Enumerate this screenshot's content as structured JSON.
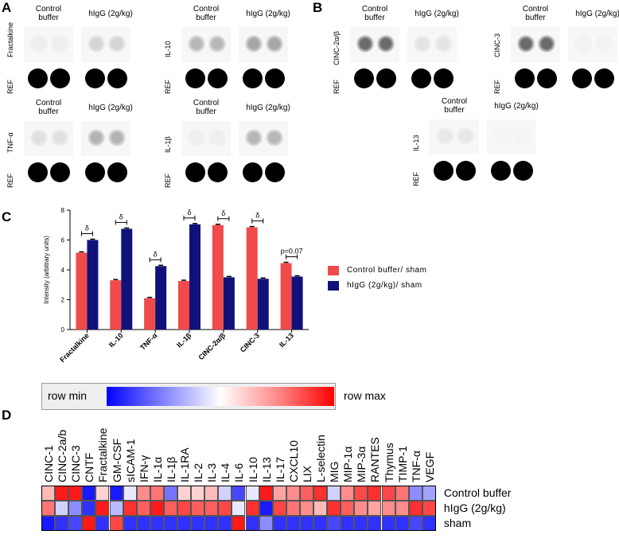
{
  "panels": {
    "a": "A",
    "b": "B",
    "c": "C",
    "d": "D"
  },
  "blots": {
    "control": "Control\nbuffer",
    "higg": "hIgG (2g/kg)",
    "ref": "REF",
    "a_items": [
      {
        "name": "Fractalkine"
      },
      {
        "name": "IL-10"
      },
      {
        "name": "TNF-α"
      },
      {
        "name": "IL-1β"
      }
    ],
    "b_items": [
      {
        "name": "CINC-2α/β"
      },
      {
        "name": "CINC-3"
      },
      {
        "name": "IL-13"
      }
    ]
  },
  "chart_data": {
    "type": "bar",
    "ylabel": "Intensity (arbitrary units)",
    "ylim": [
      0,
      8
    ],
    "yticks": [
      0,
      2,
      4,
      6,
      8
    ],
    "categories": [
      "Fractalkine",
      "IL-10",
      "TNF-α",
      "IL-1β",
      "CINC-2α/β",
      "CINC-3",
      "IL-13"
    ],
    "series": [
      {
        "name": "Control buffer/ sham",
        "color": "#f04a4a",
        "values": [
          5.15,
          3.3,
          2.1,
          3.25,
          7.0,
          6.85,
          4.45
        ]
      },
      {
        "name": "hIgG (2g/kg)/ sham",
        "color": "#10127a",
        "values": [
          6.0,
          6.75,
          4.25,
          7.05,
          3.5,
          3.4,
          3.55
        ]
      }
    ],
    "annotations": [
      "δ",
      "δ",
      "δ",
      "δ",
      "δ",
      "δ",
      "p=0.07"
    ]
  },
  "colorbar": {
    "min_label": "row min",
    "max_label": "row max"
  },
  "heatmap": {
    "columns": [
      "CINC-1",
      "CINC-2a/b",
      "CINC-3",
      "CNTF",
      "Fractalkine",
      "GM-CSF",
      "sICAM-1",
      "IFN-γ",
      "IL-1α",
      "IL-1β",
      "IL-1RA",
      "IL-2",
      "IL-3",
      "IL-4",
      "IL-6",
      "IL-10",
      "IL-13",
      "IL-17",
      "CXCL10",
      "LIX",
      "L-selectin",
      "MIG",
      "MIP-1α",
      "MIP-3α",
      "RANTES",
      "Thymus",
      "TIMP-1",
      "TNF-α",
      "VEGF"
    ],
    "rows": [
      "Control buffer",
      "hIgG (2g/kg)",
      "sham"
    ],
    "values": [
      [
        0.3,
        1.0,
        1.0,
        -1.0,
        0.2,
        -1.0,
        -0.1,
        0.5,
        0.6,
        -0.6,
        0.2,
        0.2,
        0.3,
        -0.2,
        -0.8,
        -0.1,
        1.0,
        0.4,
        0.5,
        0.7,
        0.9,
        -0.2,
        0.5,
        0.8,
        0.9,
        0.8,
        0.6,
        -0.5,
        -0.4
      ],
      [
        0.6,
        -0.2,
        -0.5,
        -0.9,
        1.0,
        -0.3,
        0.9,
        0.7,
        1.0,
        0.7,
        0.8,
        0.7,
        0.7,
        0.8,
        -0.1,
        0.9,
        -1.0,
        0.8,
        0.6,
        0.5,
        0.3,
        0.9,
        0.7,
        0.5,
        0.4,
        0.5,
        0.5,
        0.9,
        0.8
      ],
      [
        -1.0,
        -0.9,
        -0.8,
        1.0,
        -0.9,
        0.8,
        -0.9,
        -0.9,
        -0.9,
        -0.9,
        -0.9,
        -0.9,
        -0.9,
        -0.9,
        1.0,
        -0.9,
        -0.5,
        -0.9,
        -0.9,
        -0.9,
        -0.9,
        -0.8,
        -0.9,
        -0.9,
        -0.9,
        -0.9,
        -0.9,
        -0.8,
        -0.9
      ]
    ]
  }
}
